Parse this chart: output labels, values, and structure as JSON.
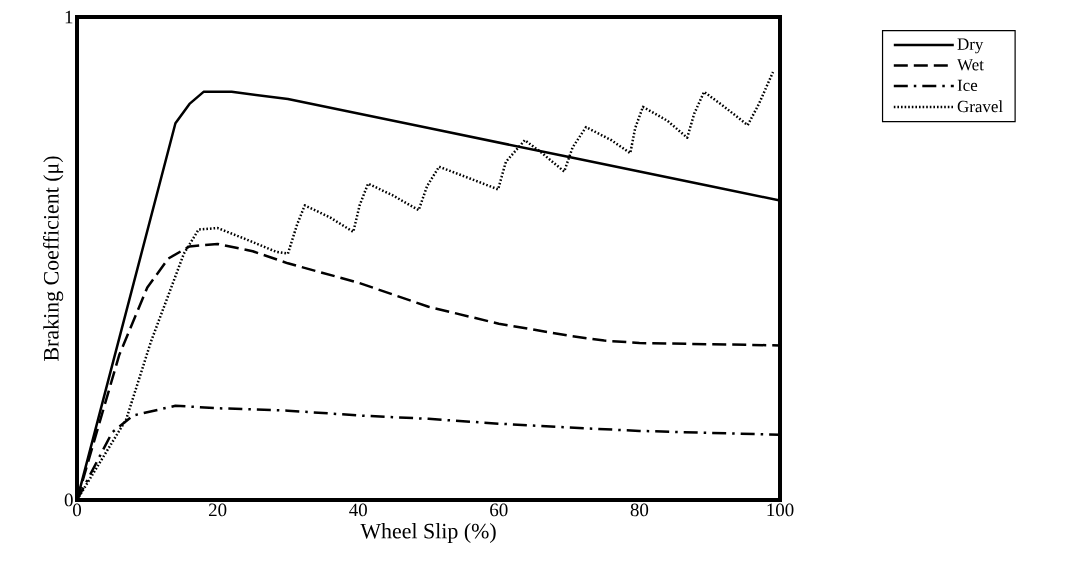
{
  "chart_data": {
    "type": "line",
    "xlabel": "Wheel Slip (%)",
    "ylabel": "Braking Coefficient (μ)",
    "xlim": [
      0,
      100
    ],
    "xticks": [
      0,
      20,
      40,
      60,
      80,
      100
    ],
    "ylim": [
      0,
      1
    ],
    "yticks": [
      0,
      1
    ],
    "grid": false,
    "legend": "top right",
    "marker": "none",
    "series": [
      {
        "name": "Dry",
        "color": "#000000",
        "line_style": "solid",
        "x": [
          0,
          14,
          16,
          18,
          22,
          30,
          40,
          50,
          60,
          70,
          80,
          90,
          100
        ],
        "values": [
          0,
          0.78,
          0.82,
          0.845,
          0.845,
          0.83,
          0.8,
          0.77,
          0.74,
          0.71,
          0.68,
          0.65,
          0.62
        ]
      },
      {
        "name": "Wet",
        "color": "#000000",
        "line_style": "dashed",
        "x": [
          0,
          6,
          10,
          13,
          16,
          20,
          25,
          30,
          40,
          50,
          60,
          70,
          75,
          80,
          100
        ],
        "values": [
          0,
          0.3,
          0.44,
          0.5,
          0.525,
          0.53,
          0.515,
          0.49,
          0.45,
          0.4,
          0.365,
          0.34,
          0.33,
          0.325,
          0.32
        ]
      },
      {
        "name": "Ice",
        "color": "#000000",
        "line_style": "dashdot",
        "x": [
          0,
          5,
          8,
          14,
          20,
          30,
          40,
          50,
          60,
          70,
          80,
          100
        ],
        "values": [
          0,
          0.14,
          0.175,
          0.195,
          0.19,
          0.185,
          0.175,
          0.168,
          0.158,
          0.15,
          0.143,
          0.135
        ]
      },
      {
        "name": "Gravel",
        "color": "#000000",
        "line_style": "dotted",
        "x": [
          0,
          7,
          10.5,
          15.2,
          17.3,
          20,
          24,
          28.3,
          30,
          31.3,
          32.4,
          36,
          39.3,
          40.2,
          41.4,
          45,
          48.6,
          49.8,
          51.5,
          56,
          59.9,
          61,
          63.7,
          66,
          69.3,
          70.5,
          72.4,
          76,
          78.7,
          79.4,
          80.5,
          84,
          86.8,
          87.8,
          89.2,
          92,
          95.4,
          97,
          99
        ],
        "values": [
          0,
          0.167,
          0.327,
          0.51,
          0.56,
          0.563,
          0.54,
          0.514,
          0.51,
          0.57,
          0.61,
          0.585,
          0.555,
          0.61,
          0.655,
          0.63,
          0.6,
          0.65,
          0.69,
          0.665,
          0.643,
          0.7,
          0.745,
          0.72,
          0.68,
          0.73,
          0.772,
          0.745,
          0.718,
          0.77,
          0.814,
          0.785,
          0.75,
          0.8,
          0.845,
          0.815,
          0.776,
          0.82,
          0.886
        ]
      }
    ]
  }
}
